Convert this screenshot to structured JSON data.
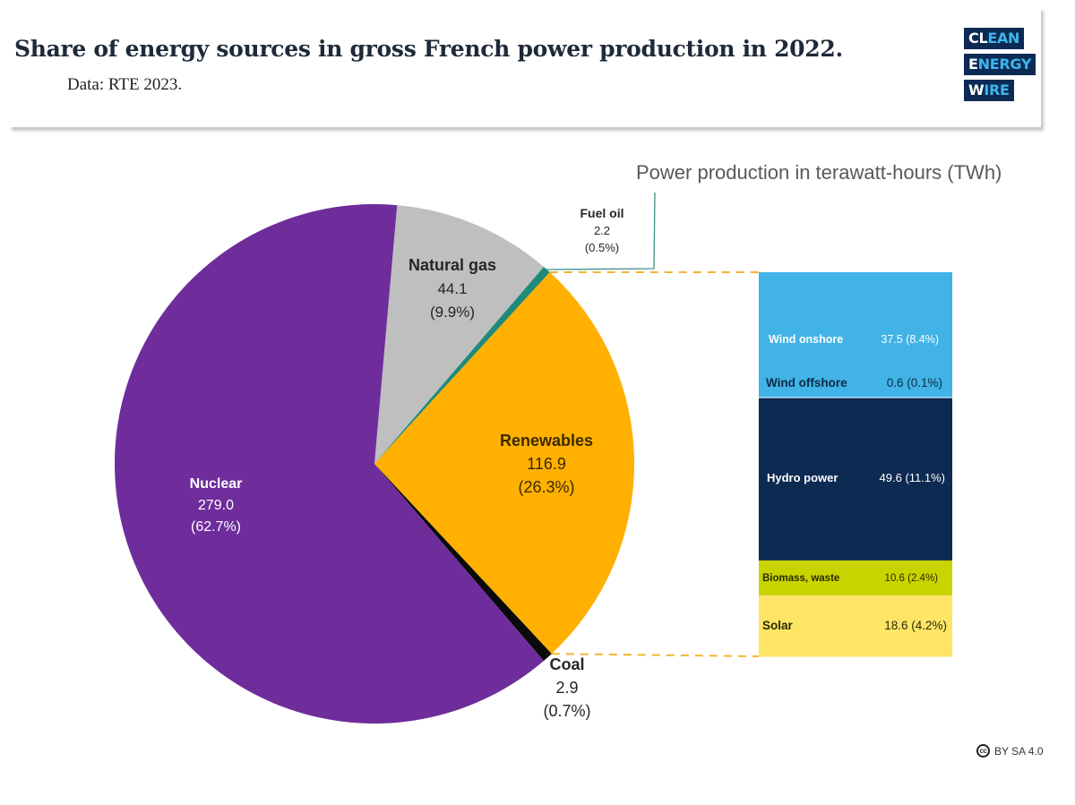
{
  "header": {
    "title": "Share of energy sources in gross French power production in 2022.",
    "subtitle": "Data: RTE 2023.",
    "logo": {
      "rows": [
        {
          "white": "CL",
          "cyan": "EAN"
        },
        {
          "white": "E",
          "cyan": "NERGY"
        },
        {
          "white": "W",
          "cyan": "IRE"
        }
      ]
    }
  },
  "license": {
    "icon": "cc-icon",
    "icon_text": "cc",
    "text": "BY SA 4.0"
  },
  "chart_data": {
    "type": "pie",
    "title": "Share of energy sources in gross French power production in 2022.",
    "subtitle": "Data: RTE 2023.",
    "unit_label": "Power production in terawatt-hours (TWh)",
    "pie": {
      "start_angle_deg": 5,
      "slices": [
        {
          "name": "Natural gas",
          "value": 44.1,
          "value_label": "44.1",
          "percent_label": "(9.9%)",
          "percent": 9.9,
          "color": "#bfbfbf",
          "text_color": "#262626"
        },
        {
          "name": "Fuel oil",
          "value": 2.2,
          "value_label": "2.2",
          "percent_label": "(0.5%)",
          "percent": 0.5,
          "color": "#1f8a7a",
          "text_color": "#262626"
        },
        {
          "name": "Renewables",
          "value": 116.9,
          "value_label": "116.9",
          "percent_label": "(26.3%)",
          "percent": 26.3,
          "color": "#ffb000",
          "text_color": "#3a2a00"
        },
        {
          "name": "Coal",
          "value": 2.9,
          "value_label": "2.9",
          "percent_label": "(0.7%)",
          "percent": 0.7,
          "color": "#0a0a0a",
          "text_color": "#262626"
        },
        {
          "name": "Nuclear",
          "value": 279.0,
          "value_label": "279.0",
          "percent_label": "(62.7%)",
          "percent": 62.7,
          "color": "#6f2d9b",
          "text_color": "#ffffff"
        }
      ]
    },
    "breakdown": {
      "parent": "Renewables",
      "total": 116.9,
      "segments": [
        {
          "name": "Wind onshore",
          "value": 37.5,
          "label": "37.5 (8.4%)",
          "percent": 8.4,
          "color": "#41b3e6",
          "text_color": "#ffffff"
        },
        {
          "name": "Wind offshore",
          "value": 0.6,
          "label": "0.6 (0.1%)",
          "percent": 0.1,
          "color": "#41b3e6",
          "text_color": "#0d2a45"
        },
        {
          "name": "Hydro power",
          "value": 49.6,
          "label": "49.6 (11.1%)",
          "percent": 11.1,
          "color": "#0d2a52",
          "text_color": "#ffffff"
        },
        {
          "name": "Biomass, waste",
          "value": 10.6,
          "label": "10.6 (2.4%)",
          "percent": 2.4,
          "color": "#c8d400",
          "text_color": "#2a2a00"
        },
        {
          "name": "Solar",
          "value": 18.6,
          "label": "18.6 (4.2%)",
          "percent": 4.2,
          "color": "#ffe566",
          "text_color": "#2a2a00"
        }
      ]
    }
  }
}
